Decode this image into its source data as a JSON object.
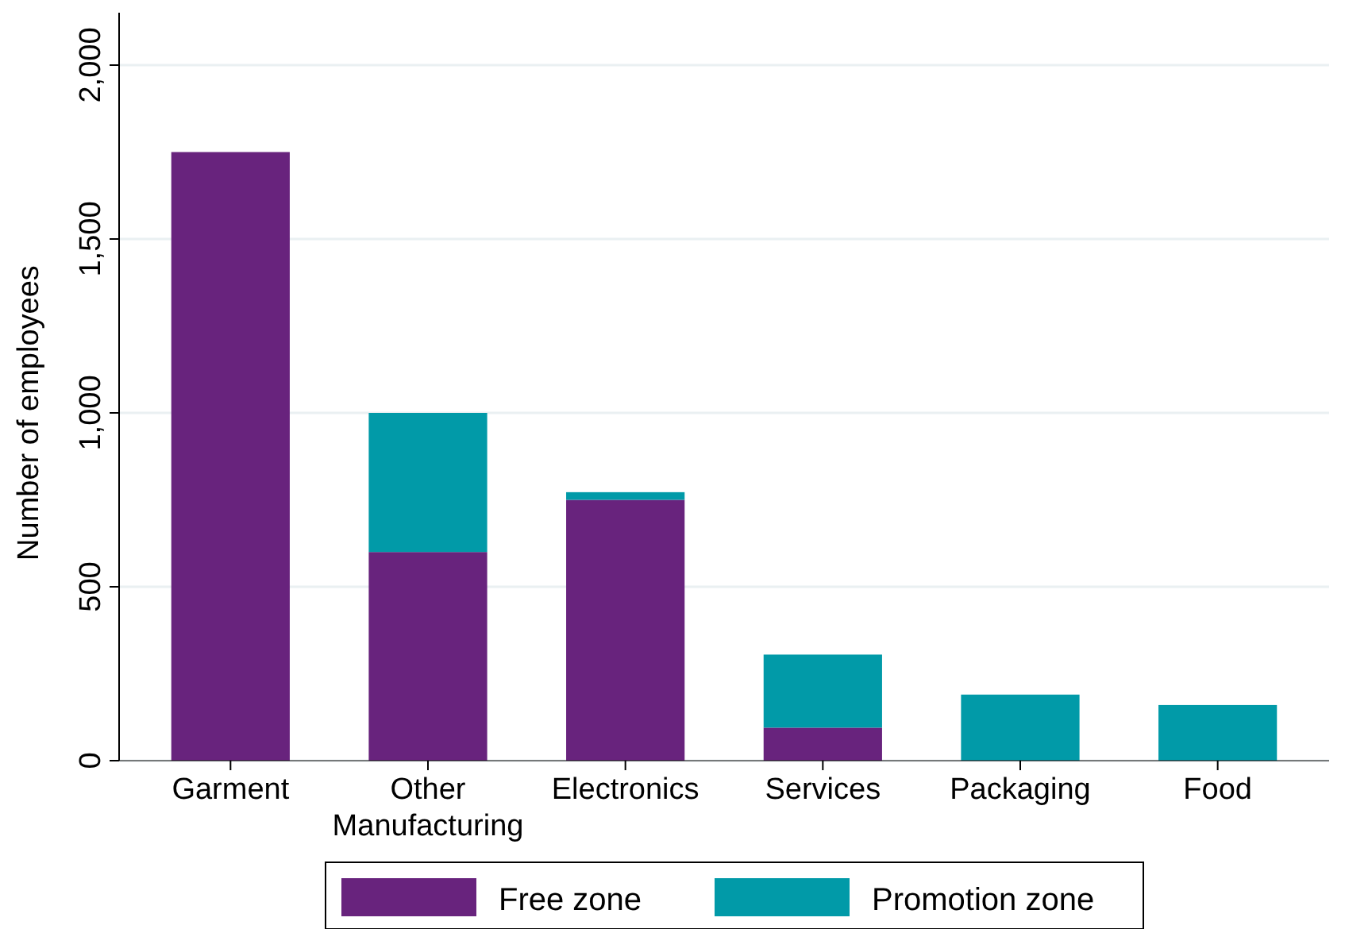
{
  "chart_data": {
    "type": "bar",
    "stacked": true,
    "ylabel": "Number of employees",
    "categories": [
      "Garment",
      "Other Manufacturing",
      "Electronics",
      "Services",
      "Packaging",
      "Food"
    ],
    "series": [
      {
        "name": "Free zone",
        "color": "#68237d",
        "values": [
          1750,
          600,
          750,
          95,
          0,
          0
        ]
      },
      {
        "name": "Promotion zone",
        "color": "#019aa8",
        "values": [
          0,
          400,
          22,
          210,
          190,
          160
        ]
      }
    ],
    "ylim": [
      0,
      2000
    ],
    "yticks": [
      0,
      {
        "value": 500,
        "label": "500"
      },
      {
        "value": 1000,
        "label": "1,000"
      },
      {
        "value": 1500,
        "label": "1,500"
      },
      {
        "value": 2000,
        "label": "2,000"
      }
    ],
    "grid": "y",
    "legend": "bottom"
  }
}
